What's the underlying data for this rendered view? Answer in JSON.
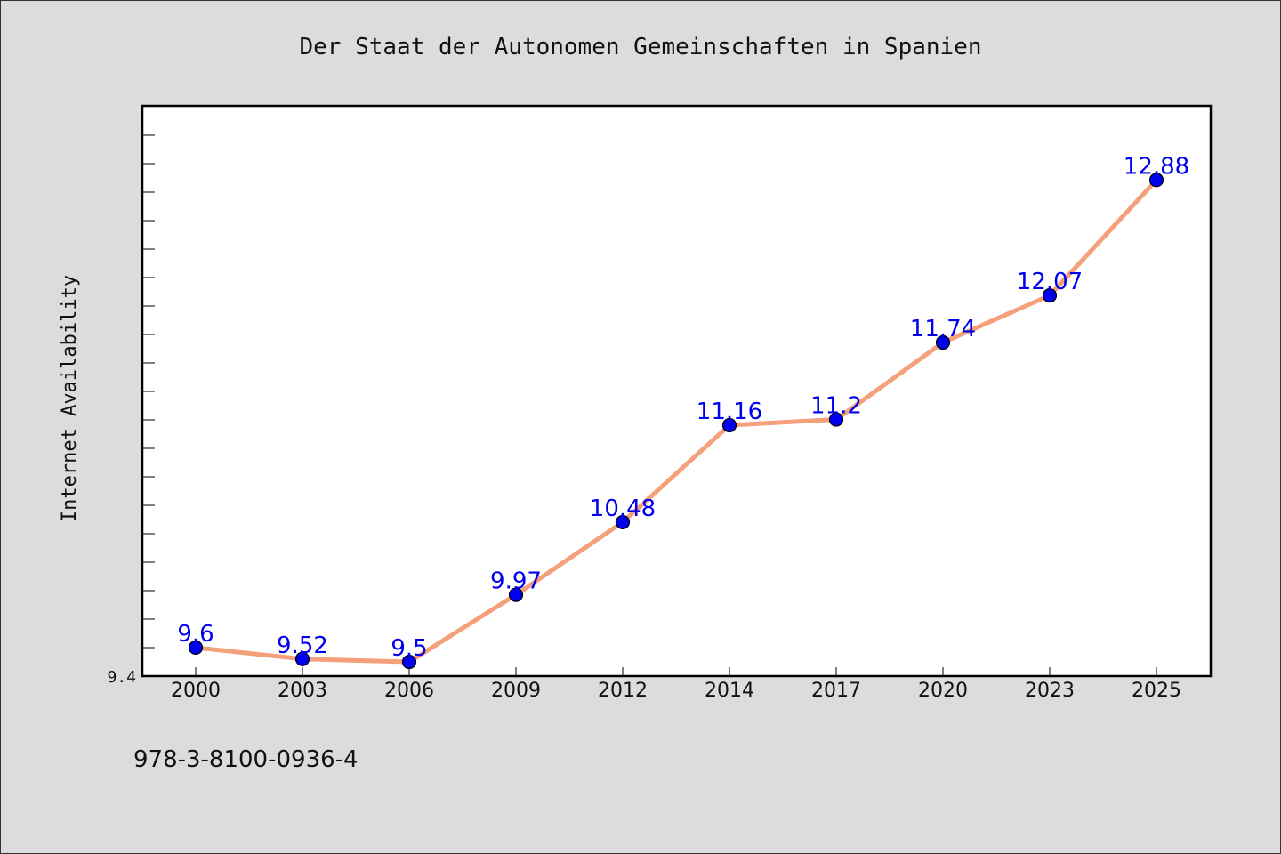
{
  "chart_data": {
    "type": "line",
    "title": "Der Staat der Autonomen Gemeinschaften in Spanien",
    "xlabel": "",
    "ylabel": "Internet Availability",
    "categories": [
      "2000",
      "2003",
      "2006",
      "2009",
      "2012",
      "2014",
      "2017",
      "2020",
      "2023",
      "2025"
    ],
    "series": [
      {
        "values": [
          9.6,
          9.52,
          9.5,
          9.97,
          10.48,
          11.16,
          11.2,
          11.74,
          12.07,
          12.88
        ],
        "color": "#f4a07a",
        "marker_color": "#0000ee"
      }
    ],
    "data_labels": [
      "9.6",
      "9.52",
      "9.5",
      "9.97",
      "10.48",
      "11.16",
      "11.2",
      "11.74",
      "12.07",
      "12.88"
    ],
    "y_tick_labels": [
      "9.4"
    ],
    "ylim": [
      9.4,
      13.4
    ],
    "grid": false,
    "legend": "none"
  },
  "footer_text": "978-3-8100-0936-4"
}
